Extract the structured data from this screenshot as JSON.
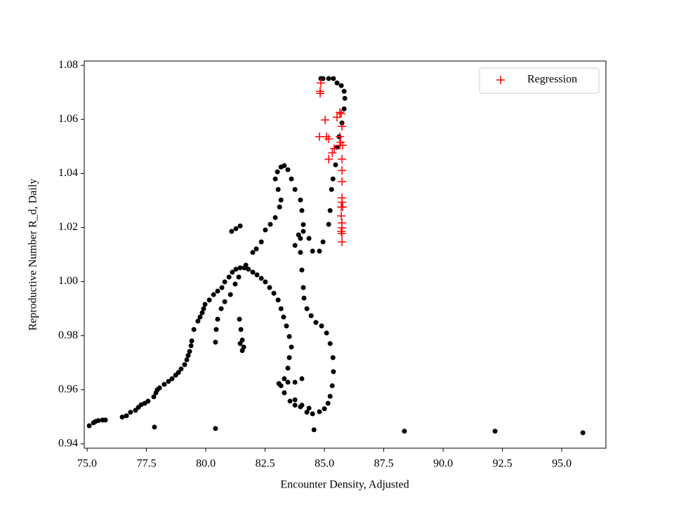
{
  "chart_data": {
    "type": "scatter",
    "xlabel": "Encounter Density, Adjusted",
    "ylabel": "Reproductive Number R_d, Daily",
    "xlim": [
      74.88,
      96.86
    ],
    "ylim": [
      0.9384,
      1.0816
    ],
    "xticks": [
      {
        "value": 75,
        "label": "75.0"
      },
      {
        "value": 77.5,
        "label": "77.5"
      },
      {
        "value": 80,
        "label": "80.0"
      },
      {
        "value": 82.5,
        "label": "82.5"
      },
      {
        "value": 85,
        "label": "85.0"
      },
      {
        "value": 87.5,
        "label": "87.5"
      },
      {
        "value": 90,
        "label": "90.0"
      },
      {
        "value": 92.5,
        "label": "92.5"
      },
      {
        "value": 95,
        "label": "95.0"
      }
    ],
    "yticks": [
      0.94,
      0.96,
      0.98,
      {
        "value": 1.0,
        "label": "1.00"
      },
      1.02,
      1.04,
      1.06,
      1.08
    ],
    "legend": "upper right",
    "series": [
      {
        "color": "#000000",
        "marker": "dot",
        "x": [
          75.09,
          75.27,
          75.36,
          75.47,
          75.65,
          75.77,
          76.48,
          76.66,
          76.83,
          77.04,
          77.16,
          77.28,
          77.43,
          77.57,
          77.81,
          77.9,
          77.96,
          78.05,
          78.25,
          78.43,
          78.58,
          78.73,
          78.85,
          78.96,
          79.11,
          79.2,
          79.26,
          79.32,
          79.38,
          79.41,
          79.5,
          79.67,
          79.76,
          79.85,
          79.91,
          79.97,
          80.15,
          80.33,
          80.5,
          80.68,
          80.8,
          80.98,
          81.12,
          81.27,
          81.45,
          81.63,
          81.8,
          81.98,
          82.16,
          82.34,
          82.51,
          82.69,
          82.87,
          83.05,
          83.17,
          83.28,
          83.4,
          83.52,
          83.61,
          83.52,
          83.46,
          83.31,
          83.17,
          83.08,
          83.31,
          83.55,
          83.76,
          83.99,
          84.26,
          84.5,
          84.79,
          85.0,
          85.15,
          85.24,
          85.33,
          85.38,
          85.36,
          85.24,
          85.09,
          84.88,
          84.64,
          84.44,
          84.26,
          84.14,
          84.11,
          84.05,
          83.99,
          83.99,
          84.11,
          84.05,
          83.99,
          83.76,
          83.61,
          83.46,
          83.31,
          83.17,
          83.02,
          82.93,
          83.05,
          83.17,
          83.11,
          82.93,
          82.72,
          82.51,
          82.34,
          82.13,
          81.98,
          81.69,
          81.39,
          81.24,
          81.04,
          80.8,
          80.65,
          80.5,
          80.44,
          80.41,
          81.42,
          81.48,
          81.54,
          81.6,
          81.54,
          81.45,
          81.09,
          81.27,
          81.45,
          83.76,
          83.91,
          84.11,
          84.35,
          84.5,
          84.79,
          84.94,
          85.18,
          85.24,
          85.3,
          85.36,
          85.47,
          85.53,
          85.62,
          85.74,
          85.83,
          85.86,
          85.83,
          85.71,
          85.53,
          85.38,
          85.18,
          84.94,
          84.85,
          83.76,
          84.05,
          84.35,
          83.46,
          83.76,
          84.05,
          77.84,
          80.41,
          84.56,
          88.37,
          92.19,
          95.89
        ],
        "values": [
          0.9467,
          0.9478,
          0.9483,
          0.9486,
          0.9488,
          0.9488,
          0.9499,
          0.9504,
          0.9517,
          0.9524,
          0.9535,
          0.9545,
          0.955,
          0.9558,
          0.9574,
          0.9589,
          0.96,
          0.9607,
          0.962,
          0.9631,
          0.9641,
          0.9654,
          0.9664,
          0.9677,
          0.9693,
          0.9711,
          0.9727,
          0.9742,
          0.9763,
          0.9781,
          0.9823,
          0.9854,
          0.9869,
          0.9885,
          0.99,
          0.9916,
          0.9932,
          0.9952,
          0.9965,
          0.9978,
          0.9999,
          1.0017,
          1.0035,
          1.0046,
          1.0051,
          1.0051,
          1.0046,
          1.0035,
          1.0025,
          1.0012,
          0.9999,
          0.9978,
          0.9957,
          0.9932,
          0.99,
          0.9869,
          0.9836,
          0.9797,
          0.9758,
          0.9719,
          0.968,
          0.9641,
          0.9615,
          0.9623,
          0.9589,
          0.9558,
          0.9543,
          0.9537,
          0.9517,
          0.9511,
          0.9519,
          0.953,
          0.955,
          0.9576,
          0.9615,
          0.9667,
          0.9719,
          0.9771,
          0.981,
          0.9836,
          0.9849,
          0.9874,
          0.99,
          0.9939,
          0.9978,
          1.0043,
          1.0108,
          1.016,
          1.0211,
          1.0263,
          1.0302,
          1.0341,
          1.038,
          1.0414,
          1.0429,
          1.0424,
          1.0406,
          1.038,
          1.0341,
          1.0302,
          1.0276,
          1.0237,
          1.0212,
          1.0191,
          1.0147,
          1.0121,
          1.0108,
          1.0061,
          1.0017,
          0.9991,
          0.9952,
          0.9926,
          0.99,
          0.9861,
          0.9823,
          0.9776,
          0.9861,
          0.9823,
          0.9784,
          0.9758,
          0.9745,
          0.9771,
          1.0186,
          1.0196,
          1.0206,
          1.0134,
          1.0173,
          1.0186,
          1.016,
          1.0113,
          1.0113,
          1.0147,
          1.0212,
          1.0263,
          1.0341,
          1.038,
          1.0432,
          1.0497,
          1.0536,
          1.0587,
          1.0639,
          1.0678,
          1.0704,
          1.0725,
          1.0735,
          1.0751,
          1.0751,
          1.0751,
          1.0751,
          0.9563,
          0.9543,
          0.9532,
          0.9628,
          0.9628,
          0.9641,
          0.9462,
          0.9457,
          0.9452,
          0.9447,
          0.9447,
          0.9441
        ]
      },
      {
        "name": "Regression",
        "color": "#ff0000",
        "marker": "plus",
        "x": [
          84.85,
          84.82,
          84.82,
          85.03,
          84.79,
          85.09,
          85.18,
          85.18,
          85.33,
          85.41,
          85.53,
          85.65,
          85.71,
          85.74,
          85.65,
          85.68,
          85.65,
          85.77,
          85.74,
          85.74,
          85.74,
          85.74,
          85.74,
          85.71,
          85.77,
          85.71,
          85.74,
          85.74,
          85.71,
          85.74,
          85.74
        ],
        "values": [
          1.0735,
          1.0704,
          1.0696,
          1.0598,
          1.0536,
          1.0536,
          1.0528,
          1.0453,
          1.0476,
          1.0492,
          1.0608,
          1.0626,
          1.0621,
          1.0574,
          1.0536,
          1.0515,
          1.0504,
          1.0504,
          1.0453,
          1.0411,
          1.037,
          1.031,
          1.0294,
          1.0276,
          1.0276,
          1.0243,
          1.0217,
          1.0199,
          1.0186,
          1.0178,
          1.0147
        ]
      }
    ]
  }
}
